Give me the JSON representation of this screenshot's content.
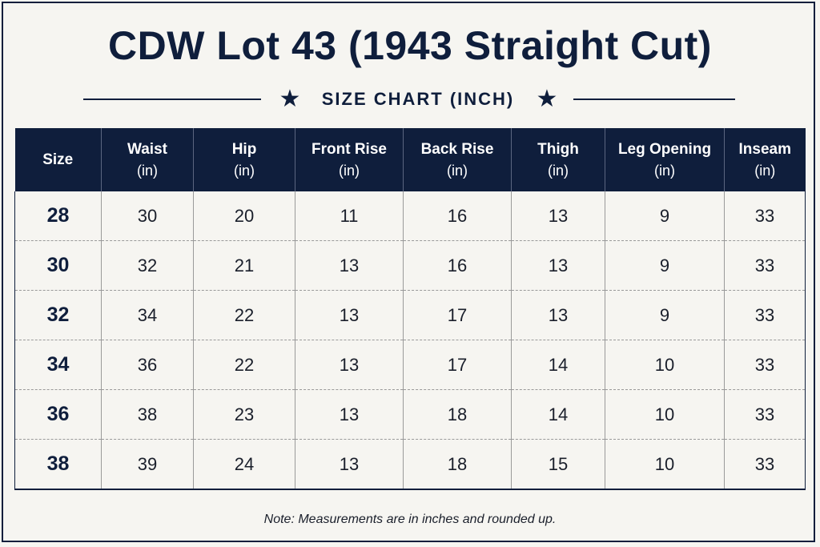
{
  "title": "CDW Lot 43 (1943 Straight Cut)",
  "subtitle": "SIZE CHART (INCH)",
  "icons": {
    "star": "★"
  },
  "colors": {
    "header_bg": "#0f1e3c",
    "background": "#f6f5f1"
  },
  "table": {
    "columns": [
      {
        "label": "Size",
        "unit": ""
      },
      {
        "label": "Waist",
        "unit": "(in)"
      },
      {
        "label": "Hip",
        "unit": "(in)"
      },
      {
        "label": "Front Rise",
        "unit": "(in)"
      },
      {
        "label": "Back Rise",
        "unit": "(in)"
      },
      {
        "label": "Thigh",
        "unit": "(in)"
      },
      {
        "label": "Leg Opening",
        "unit": "(in)"
      },
      {
        "label": "Inseam",
        "unit": "(in)"
      }
    ],
    "rows": [
      [
        "28",
        "30",
        "20",
        "11",
        "16",
        "13",
        "9",
        "33"
      ],
      [
        "30",
        "32",
        "21",
        "13",
        "16",
        "13",
        "9",
        "33"
      ],
      [
        "32",
        "34",
        "22",
        "13",
        "17",
        "13",
        "9",
        "33"
      ],
      [
        "34",
        "36",
        "22",
        "13",
        "17",
        "14",
        "10",
        "33"
      ],
      [
        "36",
        "38",
        "23",
        "13",
        "18",
        "14",
        "10",
        "33"
      ],
      [
        "38",
        "39",
        "24",
        "13",
        "18",
        "15",
        "10",
        "33"
      ]
    ]
  },
  "note": "Note: Measurements are in inches and rounded up."
}
